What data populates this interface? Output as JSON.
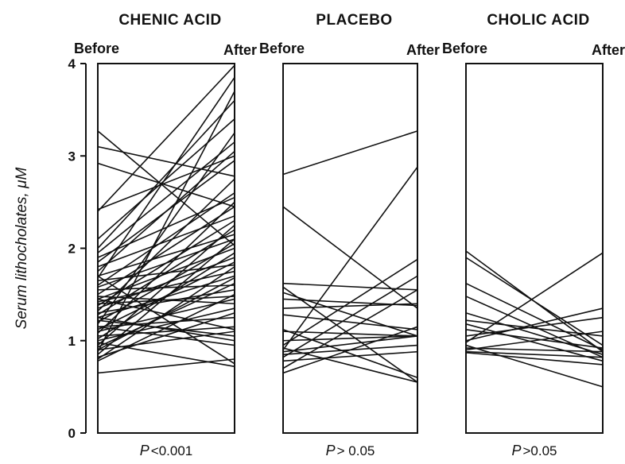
{
  "chart_data": {
    "type": "line",
    "ylabel": "Serum lithocholates, μM",
    "ylim": [
      0,
      4
    ],
    "yticks": [
      "0",
      "1",
      "2",
      "3",
      "4"
    ],
    "x_categories": [
      "Before",
      "After"
    ],
    "line_color": "#111111",
    "panels": [
      {
        "title": "CHENIC ACID",
        "left_label": "Before",
        "right_label": "After",
        "p_prefix": "P",
        "p_value": "<0.001",
        "pairs": [
          [
            3.27,
            2.03
          ],
          [
            3.1,
            2.78
          ],
          [
            2.92,
            2.45
          ],
          [
            2.42,
            3.0
          ],
          [
            2.4,
            3.98
          ],
          [
            2.1,
            3.4
          ],
          [
            2.0,
            3.6
          ],
          [
            1.95,
            3.15
          ],
          [
            1.9,
            2.55
          ],
          [
            1.85,
            2.95
          ],
          [
            1.8,
            2.35
          ],
          [
            1.75,
            3.05
          ],
          [
            1.7,
            2.15
          ],
          [
            1.68,
            3.85
          ],
          [
            1.65,
            1.82
          ],
          [
            1.6,
            2.6
          ],
          [
            1.58,
            2.1
          ],
          [
            1.55,
            1.6
          ],
          [
            1.5,
            2.45
          ],
          [
            1.48,
            1.4
          ],
          [
            1.45,
            2.0
          ],
          [
            1.42,
            1.75
          ],
          [
            1.4,
            1.48
          ],
          [
            1.38,
            2.3
          ],
          [
            1.35,
            1.9
          ],
          [
            1.32,
            2.75
          ],
          [
            1.3,
            1.55
          ],
          [
            1.28,
            2.2
          ],
          [
            1.25,
            1.7
          ],
          [
            1.22,
            1.05
          ],
          [
            1.2,
            2.05
          ],
          [
            1.18,
            3.25
          ],
          [
            1.15,
            1.25
          ],
          [
            1.12,
            1.85
          ],
          [
            1.1,
            1.45
          ],
          [
            1.08,
            2.5
          ],
          [
            1.05,
            1.15
          ],
          [
            1.02,
            1.95
          ],
          [
            1.0,
            1.35
          ],
          [
            0.98,
            0.72
          ],
          [
            0.95,
            2.25
          ],
          [
            0.93,
            1.62
          ],
          [
            0.9,
            1.1
          ],
          [
            0.88,
            3.7
          ],
          [
            0.85,
            2.1
          ],
          [
            0.82,
            1.3
          ],
          [
            0.8,
            1.8
          ],
          [
            0.78,
            1.5
          ],
          [
            1.15,
            0.95
          ],
          [
            1.45,
            1.12
          ],
          [
            0.65,
            0.8
          ],
          [
            1.7,
            0.75
          ],
          [
            1.25,
            1.0
          ],
          [
            0.9,
            1.68
          ]
        ]
      },
      {
        "title": "PLACEBO",
        "left_label": "Before",
        "right_label": "After",
        "p_prefix": "P",
        "p_value": "> 0.05",
        "pairs": [
          [
            2.8,
            3.27
          ],
          [
            2.45,
            1.35
          ],
          [
            1.62,
            1.55
          ],
          [
            1.58,
            0.55
          ],
          [
            1.52,
            1.05
          ],
          [
            1.45,
            1.38
          ],
          [
            1.28,
            1.12
          ],
          [
            1.12,
            0.6
          ],
          [
            1.0,
            1.05
          ],
          [
            0.95,
            1.88
          ],
          [
            0.9,
            2.88
          ],
          [
            0.88,
            1.05
          ],
          [
            0.85,
            0.95
          ],
          [
            0.82,
            1.7
          ],
          [
            0.78,
            0.88
          ],
          [
            0.7,
            1.55
          ],
          [
            0.65,
            1.15
          ],
          [
            1.1,
            1.05
          ],
          [
            0.92,
            0.55
          ],
          [
            1.35,
            1.4
          ]
        ]
      },
      {
        "title": "CHOLIC ACID",
        "left_label": "Before",
        "right_label": "After",
        "p_prefix": "P",
        "p_value": ">0.05",
        "pairs": [
          [
            1.97,
            0.88
          ],
          [
            1.9,
            0.95
          ],
          [
            1.62,
            0.9
          ],
          [
            1.48,
            0.82
          ],
          [
            1.3,
            0.85
          ],
          [
            1.22,
            1.05
          ],
          [
            1.18,
            0.78
          ],
          [
            1.12,
            0.92
          ],
          [
            1.05,
            1.25
          ],
          [
            1.0,
            1.35
          ],
          [
            0.98,
            1.95
          ],
          [
            0.95,
            0.5
          ],
          [
            0.92,
            0.88
          ],
          [
            0.9,
            1.1
          ],
          [
            0.88,
            0.82
          ],
          [
            0.87,
            0.74
          ]
        ]
      }
    ]
  }
}
